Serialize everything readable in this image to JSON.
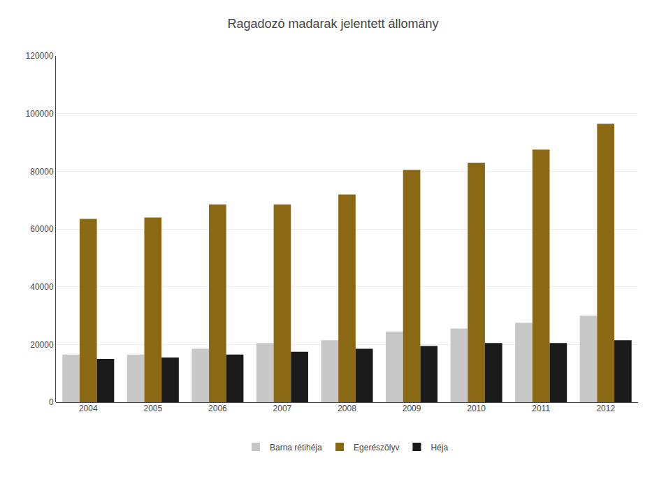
{
  "chart_data": {
    "type": "bar",
    "title": "Ragadozó madarak jelentett állomány",
    "categories": [
      "2004",
      "2005",
      "2006",
      "2007",
      "2008",
      "2009",
      "2010",
      "2011",
      "2012"
    ],
    "series": [
      {
        "name": "Barna rétihéja",
        "color": "#c8c8c8",
        "values": [
          16500,
          16500,
          18500,
          20500,
          21500,
          24500,
          25500,
          27500,
          30000
        ]
      },
      {
        "name": "Egerészölyv",
        "color": "#8B6914",
        "values": [
          63500,
          64000,
          68500,
          68500,
          72000,
          80500,
          83000,
          87500,
          96500
        ]
      },
      {
        "name": "Héja",
        "color": "#1a1a1a",
        "values": [
          15000,
          15500,
          16500,
          17500,
          18500,
          19500,
          20500,
          20500,
          21500
        ]
      }
    ],
    "ylim": [
      0,
      120000
    ],
    "yticks": [
      0,
      20000,
      40000,
      60000,
      80000,
      100000,
      120000
    ],
    "grid": true,
    "legend": "bottom"
  }
}
